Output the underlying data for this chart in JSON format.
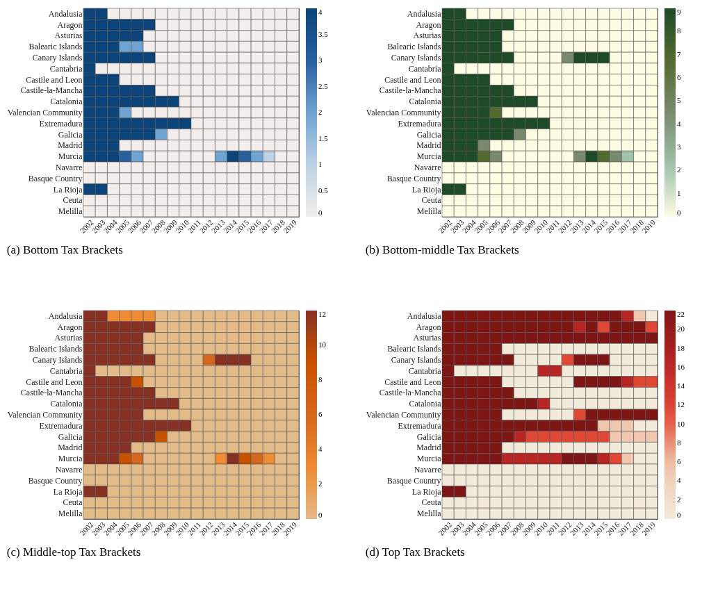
{
  "chart_data": [
    {
      "type": "heatmap",
      "title": "(a) Bottom Tax Brackets",
      "categories": [
        "2002",
        "2003",
        "2004",
        "2005",
        "2006",
        "2007",
        "2008",
        "2009",
        "2010",
        "2011",
        "2012",
        "2013",
        "2014",
        "2015",
        "2016",
        "2017",
        "2018",
        "2019"
      ],
      "y_categories": [
        "Andalusia",
        "Aragon",
        "Asturias",
        "Balearic Islands",
        "Canary Islands",
        "Cantabria",
        "Castile and Leon",
        "Castile-la-Mancha",
        "Catalonia",
        "Valencian Community",
        "Extremadura",
        "Galicia",
        "Madrid",
        "Murcia",
        "Navarre",
        "Basque Country",
        "La Rioja",
        "Ceuta",
        "Melilla"
      ],
      "cells": [
        [
          4,
          4,
          0,
          0,
          0,
          0,
          0,
          0,
          0,
          0,
          0,
          0,
          0,
          0,
          0,
          0,
          0,
          0
        ],
        [
          4,
          4,
          4,
          4,
          4,
          4,
          0,
          0,
          0,
          0,
          0,
          0,
          0,
          0,
          0,
          0,
          0,
          0
        ],
        [
          4,
          4,
          4,
          4,
          4,
          0,
          0,
          0,
          0,
          0,
          0,
          0,
          0,
          0,
          0,
          0,
          0,
          0
        ],
        [
          4,
          4,
          4,
          2,
          2,
          0,
          0,
          0,
          0,
          0,
          0,
          0,
          0,
          0,
          0,
          0,
          0,
          0
        ],
        [
          4,
          4,
          4,
          4,
          4,
          4,
          0,
          0,
          0,
          0,
          0,
          0,
          0,
          0,
          0,
          0,
          0,
          0
        ],
        [
          4,
          0,
          0,
          0,
          0,
          0,
          0,
          0,
          0,
          0,
          0,
          0,
          0,
          0,
          0,
          0,
          0,
          0
        ],
        [
          4,
          4,
          4,
          0,
          0,
          0,
          0,
          0,
          0,
          0,
          0,
          0,
          0,
          0,
          0,
          0,
          0,
          0
        ],
        [
          4,
          4,
          4,
          4,
          4,
          4,
          0,
          0,
          0,
          0,
          0,
          0,
          0,
          0,
          0,
          0,
          0,
          0
        ],
        [
          4,
          4,
          4,
          4,
          4,
          4,
          4,
          4,
          0,
          0,
          0,
          0,
          0,
          0,
          0,
          0,
          0,
          0
        ],
        [
          4,
          4,
          4,
          2,
          0,
          0,
          0,
          0,
          0,
          0,
          0,
          0,
          0,
          0,
          0,
          0,
          0,
          0
        ],
        [
          4,
          4,
          4,
          4,
          4,
          4,
          4,
          4,
          4,
          0,
          0,
          0,
          0,
          0,
          0,
          0,
          0,
          0
        ],
        [
          4,
          4,
          4,
          4,
          4,
          4,
          2,
          0,
          0,
          0,
          0,
          0,
          0,
          0,
          0,
          0,
          0,
          0
        ],
        [
          4,
          4,
          4,
          0,
          0,
          0,
          0,
          0,
          0,
          0,
          0,
          0,
          0,
          0,
          0,
          0,
          0,
          0
        ],
        [
          4,
          4,
          4,
          3,
          2,
          0,
          0,
          0,
          0,
          0,
          0,
          2,
          4,
          3,
          2,
          1,
          0,
          0
        ],
        [
          0,
          0,
          0,
          0,
          0,
          0,
          0,
          0,
          0,
          0,
          0,
          0,
          0,
          0,
          0,
          0,
          0,
          0
        ],
        [
          0,
          0,
          0,
          0,
          0,
          0,
          0,
          0,
          0,
          0,
          0,
          0,
          0,
          0,
          0,
          0,
          0,
          0
        ],
        [
          4,
          4,
          0,
          0,
          0,
          0,
          0,
          0,
          0,
          0,
          0,
          0,
          0,
          0,
          0,
          0,
          0,
          0
        ],
        [
          0,
          0,
          0,
          0,
          0,
          0,
          0,
          0,
          0,
          0,
          0,
          0,
          0,
          0,
          0,
          0,
          0,
          0
        ],
        [
          0,
          0,
          0,
          0,
          0,
          0,
          0,
          0,
          0,
          0,
          0,
          0,
          0,
          0,
          0,
          0,
          0,
          0
        ]
      ],
      "clim": [
        0,
        4
      ],
      "cticks": [
        0,
        0.5,
        1,
        1.5,
        2,
        2.5,
        3,
        3.5,
        4
      ]
    },
    {
      "type": "heatmap",
      "title": "(b) Bottom-middle Tax Brackets",
      "categories": [
        "2002",
        "2003",
        "2004",
        "2005",
        "2006",
        "2007",
        "2008",
        "2009",
        "2010",
        "2011",
        "2012",
        "2013",
        "2014",
        "2015",
        "2016",
        "2017",
        "2018",
        "2019"
      ],
      "y_categories": [
        "Andalusia",
        "Aragon",
        "Asturias",
        "Balearic Islands",
        "Canary Islands",
        "Cantabria",
        "Castile and Leon",
        "Castile-la-Mancha",
        "Catalonia",
        "Valencian Community",
        "Extremadura",
        "Galicia",
        "Madrid",
        "Murcia",
        "Navarre",
        "Basque Country",
        "La Rioja",
        "Ceuta",
        "Melilla"
      ],
      "cells": [
        [
          9,
          9,
          0,
          0,
          0,
          0,
          0,
          0,
          0,
          0,
          0,
          0,
          0,
          0,
          0,
          0,
          0,
          0
        ],
        [
          9,
          9,
          9,
          9,
          9,
          9,
          0,
          0,
          0,
          0,
          0,
          0,
          0,
          0,
          0,
          0,
          0,
          0
        ],
        [
          9,
          9,
          9,
          9,
          9,
          0,
          0,
          0,
          0,
          0,
          0,
          0,
          0,
          0,
          0,
          0,
          0,
          0
        ],
        [
          9,
          9,
          9,
          9,
          9,
          0,
          0,
          0,
          0,
          0,
          0,
          0,
          0,
          0,
          0,
          0,
          0,
          0
        ],
        [
          9,
          9,
          9,
          9,
          9,
          9,
          0,
          0,
          0,
          0,
          4.5,
          9,
          9,
          9,
          0,
          0,
          0,
          0
        ],
        [
          9,
          0,
          0,
          0,
          0,
          0,
          0,
          0,
          0,
          0,
          0,
          0,
          0,
          0,
          0,
          0,
          0,
          0
        ],
        [
          9,
          9,
          9,
          9,
          0,
          0,
          0,
          0,
          0,
          0,
          0,
          0,
          0,
          0,
          0,
          0,
          0,
          0
        ],
        [
          9,
          9,
          9,
          9,
          9,
          9,
          0,
          0,
          0,
          0,
          0,
          0,
          0,
          0,
          0,
          0,
          0,
          0
        ],
        [
          9,
          9,
          9,
          9,
          9,
          9,
          9,
          9,
          0,
          0,
          0,
          0,
          0,
          0,
          0,
          0,
          0,
          0
        ],
        [
          9,
          9,
          9,
          9,
          6.8,
          0,
          0,
          0,
          0,
          0,
          0,
          0,
          0,
          0,
          0,
          0,
          0,
          0
        ],
        [
          9,
          9,
          9,
          9,
          9,
          9,
          9,
          9,
          9,
          0,
          0,
          0,
          0,
          0,
          0,
          0,
          0,
          0
        ],
        [
          9,
          9,
          9,
          9,
          9,
          9,
          4.5,
          0,
          0,
          0,
          0,
          0,
          0,
          0,
          0,
          0,
          0,
          0
        ],
        [
          9,
          9,
          9,
          4.5,
          0,
          0,
          0,
          0,
          0,
          0,
          0,
          0,
          0,
          0,
          0,
          0,
          0,
          0
        ],
        [
          9,
          9,
          9,
          6.8,
          4.5,
          0,
          0,
          0,
          0,
          0,
          0,
          4.5,
          9,
          6.8,
          4.5,
          2.2,
          0,
          0
        ],
        [
          0,
          0,
          0,
          0,
          0,
          0,
          0,
          0,
          0,
          0,
          0,
          0,
          0,
          0,
          0,
          0,
          0,
          0
        ],
        [
          0,
          0,
          0,
          0,
          0,
          0,
          0,
          0,
          0,
          0,
          0,
          0,
          0,
          0,
          0,
          0,
          0,
          0
        ],
        [
          9,
          9,
          0,
          0,
          0,
          0,
          0,
          0,
          0,
          0,
          0,
          0,
          0,
          0,
          0,
          0,
          0,
          0
        ],
        [
          0,
          0,
          0,
          0,
          0,
          0,
          0,
          0,
          0,
          0,
          0,
          0,
          0,
          0,
          0,
          0,
          0,
          0
        ],
        [
          0,
          0,
          0,
          0,
          0,
          0,
          0,
          0,
          0,
          0,
          0,
          0,
          0,
          0,
          0,
          0,
          0,
          0
        ]
      ],
      "clim": [
        0,
        9
      ],
      "cticks": [
        0,
        1,
        2,
        3,
        4,
        5,
        6,
        7,
        8,
        9
      ]
    },
    {
      "type": "heatmap",
      "title": "(c) Middle-top Tax Brackets",
      "categories": [
        "2002",
        "2003",
        "2004",
        "2005",
        "2006",
        "2007",
        "2008",
        "2009",
        "2010",
        "2011",
        "2012",
        "2013",
        "2014",
        "2015",
        "2016",
        "2017",
        "2018",
        "2019"
      ],
      "y_categories": [
        "Andalusia",
        "Aragon",
        "Asturias",
        "Balearic Islands",
        "Canary Islands",
        "Cantabria",
        "Castile and Leon",
        "Castile-la-Mancha",
        "Catalonia",
        "Valencian Community",
        "Extremadura",
        "Galicia",
        "Madrid",
        "Murcia",
        "Navarre",
        "Basque Country",
        "La Rioja",
        "Ceuta",
        "Melilla"
      ],
      "cells": [
        [
          12,
          12,
          3,
          3,
          3,
          3,
          0,
          0,
          0,
          0,
          0,
          0,
          0,
          0,
          0,
          0,
          0,
          0
        ],
        [
          12,
          12,
          12,
          12,
          12,
          12,
          0,
          0,
          0,
          0,
          0,
          0,
          0,
          0,
          0,
          0,
          0,
          0
        ],
        [
          12,
          12,
          12,
          12,
          12,
          0,
          0,
          0,
          0,
          0,
          0,
          0,
          0,
          0,
          0,
          0,
          0,
          0
        ],
        [
          12,
          12,
          12,
          12,
          12,
          0,
          0,
          0,
          0,
          0,
          0,
          0,
          0,
          0,
          0,
          0,
          0,
          0
        ],
        [
          12,
          12,
          12,
          12,
          12,
          12,
          0,
          0,
          0,
          0,
          6,
          12,
          12,
          12,
          0,
          0,
          0,
          0
        ],
        [
          12,
          0,
          0,
          0,
          0,
          0,
          0,
          0,
          0,
          0,
          0,
          0,
          0,
          0,
          0,
          0,
          0,
          0
        ],
        [
          12,
          12,
          12,
          12,
          9,
          0,
          0,
          0,
          0,
          0,
          0,
          0,
          0,
          0,
          0,
          0,
          0,
          0
        ],
        [
          12,
          12,
          12,
          12,
          12,
          12,
          0,
          0,
          0,
          0,
          0,
          0,
          0,
          0,
          0,
          0,
          0,
          0
        ],
        [
          12,
          12,
          12,
          12,
          12,
          12,
          12,
          12,
          0,
          0,
          0,
          0,
          0,
          0,
          0,
          0,
          0,
          0
        ],
        [
          12,
          12,
          12,
          12,
          12,
          0,
          0,
          0,
          0,
          0,
          0,
          0,
          0,
          0,
          0,
          0,
          0,
          0
        ],
        [
          12,
          12,
          12,
          12,
          12,
          12,
          12,
          12,
          12,
          0,
          0,
          0,
          0,
          0,
          0,
          0,
          0,
          0
        ],
        [
          12,
          12,
          12,
          12,
          12,
          12,
          9,
          0,
          0,
          0,
          0,
          0,
          0,
          0,
          0,
          0,
          0,
          0
        ],
        [
          12,
          12,
          12,
          12,
          0,
          0,
          0,
          0,
          0,
          0,
          0,
          0,
          0,
          0,
          0,
          0,
          0,
          0
        ],
        [
          12,
          12,
          12,
          9,
          6,
          0,
          0,
          0,
          0,
          0,
          0,
          3,
          12,
          9,
          6,
          3,
          0,
          0
        ],
        [
          0,
          0,
          0,
          0,
          0,
          0,
          0,
          0,
          0,
          0,
          0,
          0,
          0,
          0,
          0,
          0,
          0,
          0
        ],
        [
          0,
          0,
          0,
          0,
          0,
          0,
          0,
          0,
          0,
          0,
          0,
          0,
          0,
          0,
          0,
          0,
          0,
          0
        ],
        [
          12,
          12,
          0,
          0,
          0,
          0,
          0,
          0,
          0,
          0,
          0,
          0,
          0,
          0,
          0,
          0,
          0,
          0
        ],
        [
          0,
          0,
          0,
          0,
          0,
          0,
          0,
          0,
          0,
          0,
          0,
          0,
          0,
          0,
          0,
          0,
          0,
          0
        ],
        [
          0,
          0,
          0,
          0,
          0,
          0,
          0,
          0,
          0,
          0,
          0,
          0,
          0,
          0,
          0,
          0,
          0,
          0
        ]
      ],
      "clim": [
        0,
        12
      ],
      "cticks": [
        0,
        2,
        4,
        6,
        8,
        10,
        12
      ]
    },
    {
      "type": "heatmap",
      "title": "(d) Top Tax Brackets",
      "categories": [
        "2002",
        "2003",
        "2004",
        "2005",
        "2006",
        "2007",
        "2008",
        "2009",
        "2010",
        "2011",
        "2012",
        "2013",
        "2014",
        "2015",
        "2016",
        "2017",
        "2018",
        "2019"
      ],
      "y_categories": [
        "Andalusia",
        "Aragon",
        "Asturias",
        "Balearic Islands",
        "Canary Islands",
        "Cantabria",
        "Castile and Leon",
        "Castile-la-Mancha",
        "Catalonia",
        "Valencian Community",
        "Extremadura",
        "Galicia",
        "Madrid",
        "Murcia",
        "Navarre",
        "Basque Country",
        "La Rioja",
        "Ceuta",
        "Melilla"
      ],
      "cells": [
        [
          22,
          22,
          22,
          22,
          22,
          22,
          22,
          22,
          22,
          22,
          22,
          22,
          22,
          22,
          22,
          16.5,
          5.5,
          0
        ],
        [
          22,
          22,
          22,
          22,
          22,
          22,
          22,
          22,
          22,
          22,
          22,
          16.5,
          22,
          11.5,
          22,
          22,
          22,
          11.5
        ],
        [
          22,
          22,
          22,
          22,
          22,
          22,
          22,
          22,
          22,
          22,
          22,
          22,
          22,
          22,
          22,
          22,
          22,
          22
        ],
        [
          22,
          22,
          22,
          22,
          22,
          0,
          0,
          0,
          0,
          0,
          0,
          0,
          0,
          0,
          0,
          0,
          0,
          0
        ],
        [
          22,
          22,
          22,
          22,
          22,
          22,
          0,
          0,
          0,
          0,
          11.5,
          22,
          22,
          22,
          0,
          0,
          0,
          0
        ],
        [
          22,
          0,
          0,
          0,
          0,
          0,
          0,
          0,
          16.5,
          16.5,
          0,
          0,
          0,
          0,
          0,
          0,
          0,
          0
        ],
        [
          22,
          22,
          22,
          22,
          22,
          0,
          0,
          0,
          0,
          0,
          0,
          22,
          22,
          22,
          22,
          16.5,
          11.5,
          11.5
        ],
        [
          22,
          22,
          22,
          22,
          22,
          22,
          0,
          0,
          0,
          0,
          0,
          0,
          0,
          0,
          0,
          0,
          0,
          0
        ],
        [
          22,
          22,
          22,
          22,
          22,
          22,
          22,
          22,
          16.5,
          0,
          0,
          0,
          0,
          0,
          0,
          0,
          0,
          0
        ],
        [
          22,
          22,
          22,
          22,
          22,
          0,
          0,
          0,
          0,
          0,
          0,
          11.5,
          22,
          22,
          22,
          22,
          22,
          22
        ],
        [
          22,
          22,
          22,
          22,
          22,
          22,
          22,
          22,
          22,
          22,
          22,
          22,
          22,
          5.5,
          5.5,
          5.5,
          0,
          0
        ],
        [
          22,
          22,
          22,
          22,
          22,
          22,
          16.5,
          11.5,
          11.5,
          11.5,
          11.5,
          11.5,
          11.5,
          11.5,
          5.5,
          5.5,
          5.5,
          5.5
        ],
        [
          22,
          22,
          22,
          22,
          22,
          0,
          0,
          0,
          0,
          0,
          0,
          0,
          0,
          0,
          0,
          0,
          0,
          0
        ],
        [
          22,
          22,
          22,
          22,
          22,
          16.5,
          16.5,
          16.5,
          16.5,
          16.5,
          22,
          22,
          22,
          16.5,
          11.5,
          5.5,
          0,
          0
        ],
        [
          0,
          0,
          0,
          0,
          0,
          0,
          0,
          0,
          0,
          0,
          0,
          0,
          0,
          0,
          0,
          0,
          0,
          0
        ],
        [
          0,
          0,
          0,
          0,
          0,
          0,
          0,
          0,
          0,
          0,
          0,
          0,
          0,
          0,
          0,
          0,
          0,
          0
        ],
        [
          22,
          22,
          0,
          0,
          0,
          0,
          0,
          0,
          0,
          0,
          0,
          0,
          0,
          0,
          0,
          0,
          0,
          0
        ],
        [
          0,
          0,
          0,
          0,
          0,
          0,
          0,
          0,
          0,
          0,
          0,
          0,
          0,
          0,
          0,
          0,
          0,
          0
        ],
        [
          0,
          0,
          0,
          0,
          0,
          0,
          0,
          0,
          0,
          0,
          0,
          0,
          0,
          0,
          0,
          0,
          0,
          0
        ]
      ],
      "clim": [
        0,
        22
      ],
      "cticks": [
        0,
        2,
        4,
        6,
        8,
        10,
        12,
        14,
        16,
        18,
        20,
        22
      ]
    }
  ]
}
